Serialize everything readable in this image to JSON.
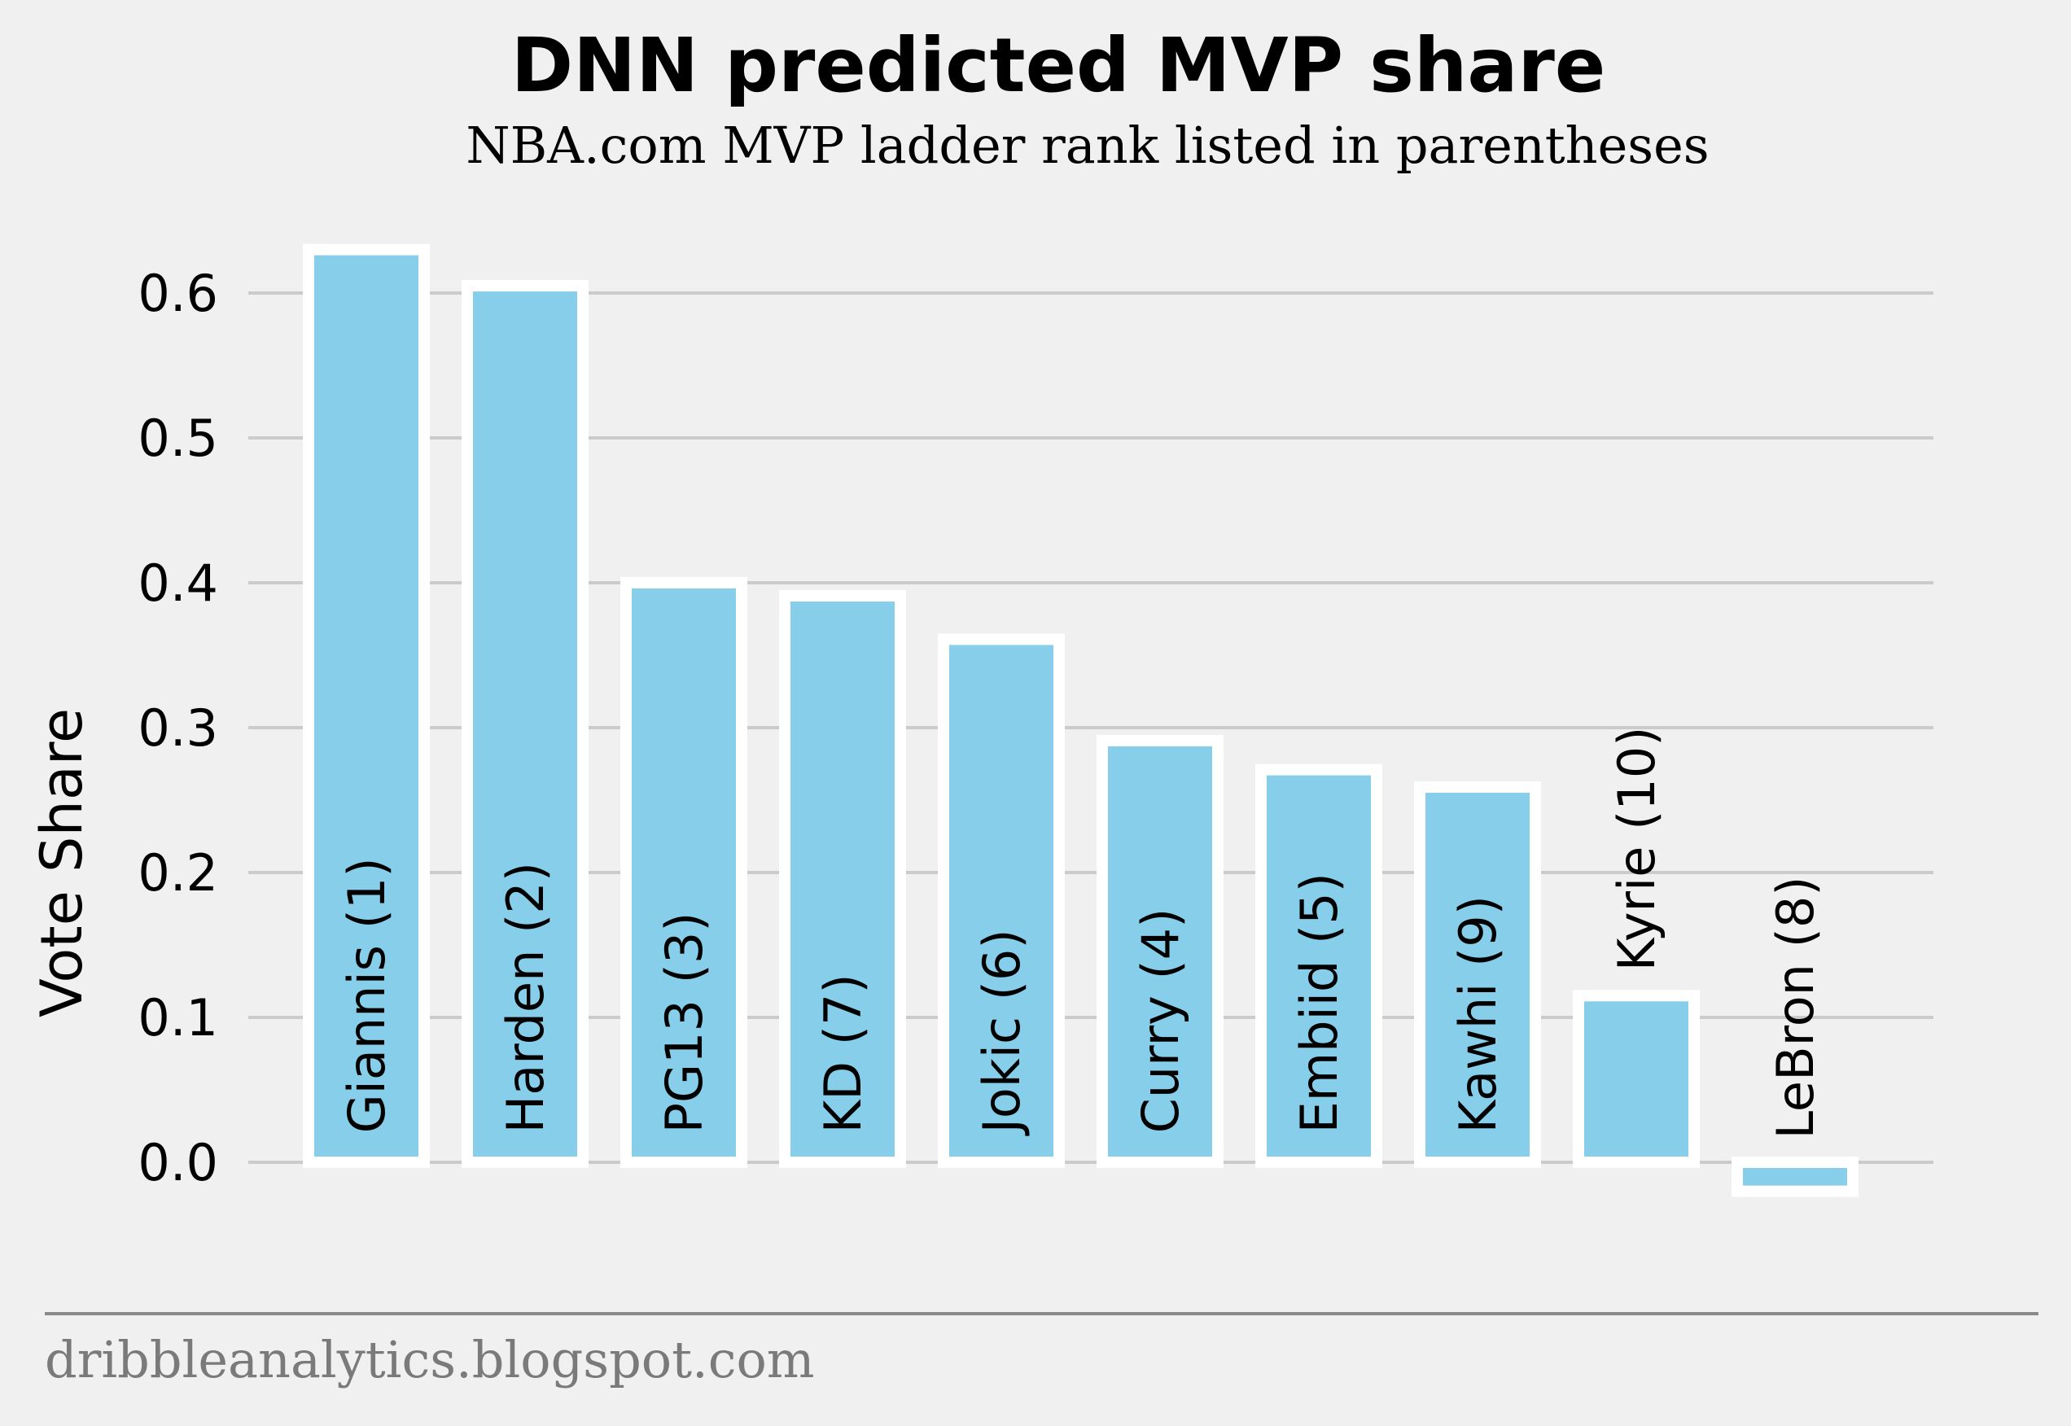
{
  "chart_data": {
    "type": "bar",
    "title": "DNN predicted MVP share",
    "subtitle": "NBA.com MVP ladder rank listed in parentheses",
    "xlabel": "",
    "ylabel": "Vote Share",
    "categories": [
      "Giannis (1)",
      "Harden (2)",
      "PG13 (3)",
      "KD (7)",
      "Jokic (6)",
      "Curry (4)",
      "Embiid (5)",
      "Kawhi (9)",
      "Kyrie (10)",
      "LeBron (8)"
    ],
    "values": [
      0.63,
      0.605,
      0.4,
      0.391,
      0.361,
      0.291,
      0.271,
      0.259,
      0.115,
      -0.02
    ],
    "ylim": [
      -0.07,
      0.65
    ],
    "yticks": [
      0.0,
      0.1,
      0.2,
      0.3,
      0.4,
      0.5,
      0.6
    ],
    "ytick_labels": [
      "0.0",
      "0.1",
      "0.2",
      "0.3",
      "0.4",
      "0.5",
      "0.6"
    ],
    "grid": "horizontal",
    "bar_color": "#87ceeb",
    "bar_edge_color": "#ffffff",
    "background": "#f0f0f0",
    "grid_color": "#cbcbcb"
  },
  "footer": {
    "text": "dribbleanalytics.blogspot.com",
    "color": "#7a7a7a",
    "rule_color": "#8a8a8a"
  }
}
